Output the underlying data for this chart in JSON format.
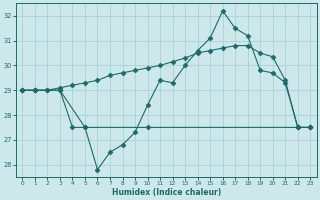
{
  "xlabel": "Humidex (Indice chaleur)",
  "background_color": "#cde8ea",
  "grid_color": "#b0d4d8",
  "line_color": "#1a6b6b",
  "xlim": [
    -0.5,
    23.5
  ],
  "ylim": [
    25.5,
    32.5
  ],
  "yticks": [
    26,
    27,
    28,
    29,
    30,
    31,
    32
  ],
  "xticks": [
    0,
    1,
    2,
    3,
    4,
    5,
    6,
    7,
    8,
    9,
    10,
    11,
    12,
    13,
    14,
    15,
    16,
    17,
    18,
    19,
    20,
    21,
    22,
    23
  ],
  "line1_x": [
    0,
    1,
    2,
    3,
    4,
    5,
    6,
    7,
    8,
    9,
    10,
    11,
    12,
    13,
    14,
    15,
    16,
    17,
    18,
    19,
    20,
    21,
    22,
    23
  ],
  "line1_y": [
    29.0,
    29.0,
    29.0,
    29.0,
    27.5,
    27.5,
    25.8,
    26.5,
    26.8,
    27.3,
    28.4,
    29.4,
    29.3,
    30.0,
    30.6,
    31.1,
    32.2,
    31.5,
    31.2,
    29.8,
    29.7,
    29.3,
    27.5,
    27.5
  ],
  "line2_x": [
    0,
    1,
    2,
    3,
    4,
    5,
    6,
    7,
    8,
    9,
    10,
    11,
    12,
    13,
    14,
    15,
    16,
    17,
    18,
    19,
    20,
    21,
    22,
    23
  ],
  "line2_y": [
    29.0,
    29.0,
    29.0,
    29.1,
    29.2,
    29.3,
    29.4,
    29.6,
    29.7,
    29.8,
    29.9,
    30.0,
    30.15,
    30.3,
    30.5,
    30.6,
    30.7,
    30.8,
    30.8,
    30.5,
    30.35,
    29.4,
    27.5,
    27.5
  ],
  "line3_x": [
    0,
    1,
    3,
    5,
    10,
    22,
    23
  ],
  "line3_y": [
    29.0,
    29.0,
    29.0,
    27.5,
    27.5,
    27.5,
    27.5
  ]
}
